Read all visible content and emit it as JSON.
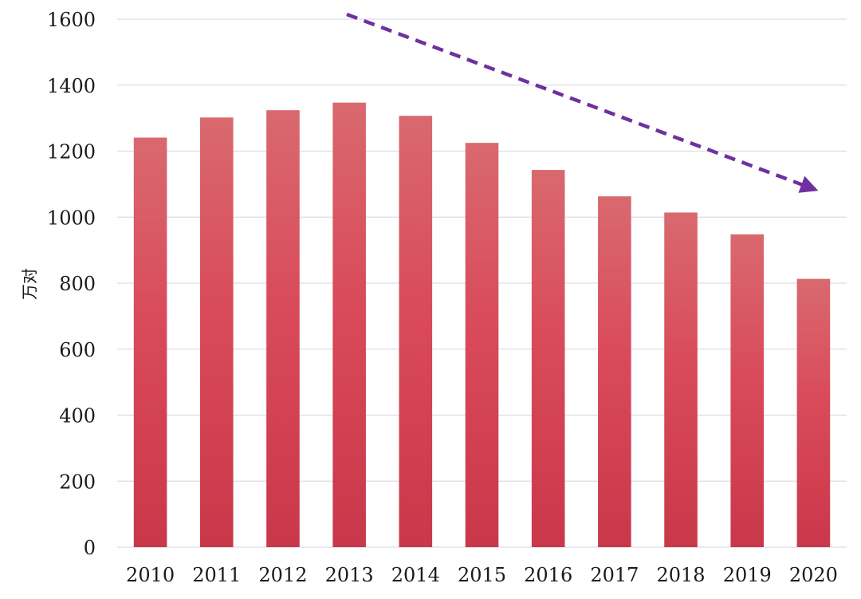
{
  "chart_data": {
    "type": "bar",
    "title": "",
    "xlabel": "",
    "ylabel": "万对",
    "categories": [
      "2010",
      "2011",
      "2012",
      "2013",
      "2014",
      "2015",
      "2016",
      "2017",
      "2018",
      "2019",
      "2020"
    ],
    "values": [
      1241,
      1302,
      1324,
      1347,
      1307,
      1225,
      1143,
      1063,
      1014,
      948,
      813
    ],
    "ylim": [
      0,
      1600
    ],
    "yticks": [
      0,
      200,
      400,
      600,
      800,
      1000,
      1200,
      1400,
      1600
    ],
    "grid": true,
    "legend": "none",
    "bar_color_top": "#d9696f",
    "bar_color_mid": "#d94a5a",
    "bar_color_bottom": "#c9384a",
    "trend_arrow": {
      "color": "#7030a0",
      "style": "dashed",
      "direction": "down"
    }
  }
}
